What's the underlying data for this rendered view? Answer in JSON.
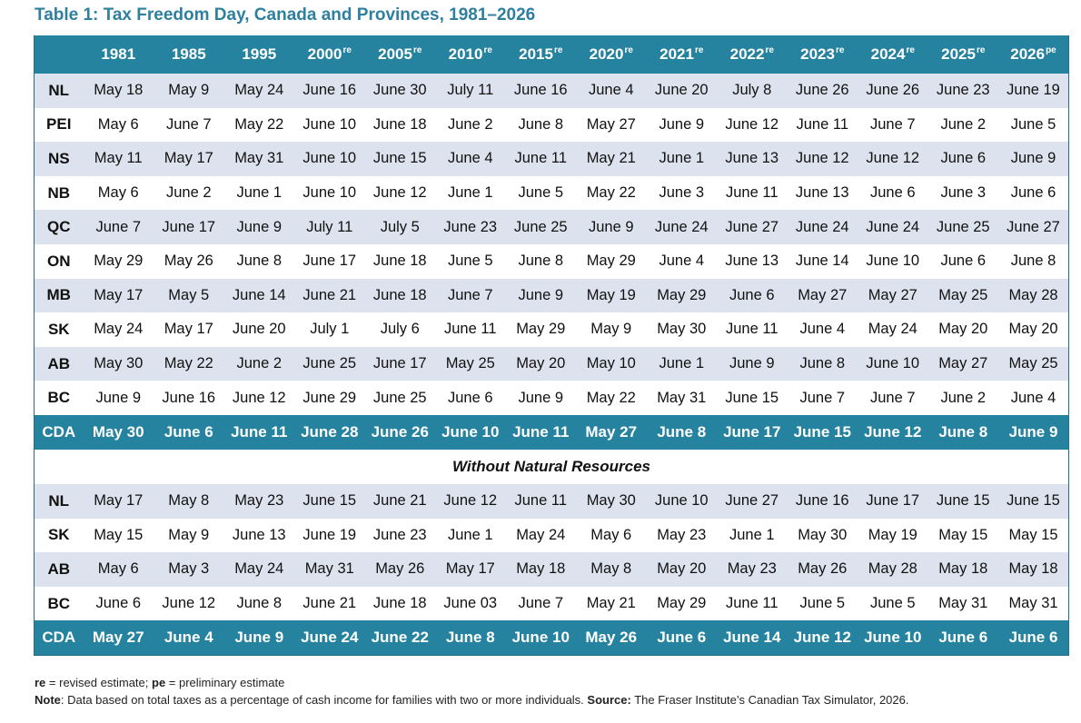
{
  "title": "Table 1: Tax Freedom Day, Canada and Provinces, 1981–2026",
  "columns": [
    {
      "year": "1981",
      "sup": ""
    },
    {
      "year": "1985",
      "sup": ""
    },
    {
      "year": "1995",
      "sup": ""
    },
    {
      "year": "2000",
      "sup": "re"
    },
    {
      "year": "2005",
      "sup": "re"
    },
    {
      "year": "2010",
      "sup": "re"
    },
    {
      "year": "2015",
      "sup": "re"
    },
    {
      "year": "2020",
      "sup": "re"
    },
    {
      "year": "2021",
      "sup": "re"
    },
    {
      "year": "2022",
      "sup": "re"
    },
    {
      "year": "2023",
      "sup": "re"
    },
    {
      "year": "2024",
      "sup": "re"
    },
    {
      "year": "2025",
      "sup": "re"
    },
    {
      "year": "2026",
      "sup": "pe"
    }
  ],
  "rows": [
    {
      "label": "NL",
      "values": [
        "May 18",
        "May 9",
        "May 24",
        "June 16",
        "June 30",
        "July 11",
        "June 16",
        "June 4",
        "June 20",
        "July 8",
        "June 26",
        "June 26",
        "June 23",
        "June 19"
      ]
    },
    {
      "label": "PEI",
      "values": [
        "May 6",
        "June 7",
        "May 22",
        "June 10",
        "June 18",
        "June 2",
        "June 8",
        "May 27",
        "June 9",
        "June 12",
        "June 11",
        "June 7",
        "June 2",
        "June 5"
      ]
    },
    {
      "label": "NS",
      "values": [
        "May 11",
        "May 17",
        "May 31",
        "June 10",
        "June 15",
        "June 4",
        "June 11",
        "May 21",
        "June 1",
        "June 13",
        "June 12",
        "June 12",
        "June 6",
        "June 9"
      ]
    },
    {
      "label": "NB",
      "values": [
        "May 6",
        "June 2",
        "June 1",
        "June 10",
        "June 12",
        "June 1",
        "June 5",
        "May 22",
        "June 3",
        "June 11",
        "June 13",
        "June 6",
        "June 3",
        "June 6"
      ]
    },
    {
      "label": "QC",
      "values": [
        "June 7",
        "June 17",
        "June 9",
        "July 11",
        "July 5",
        "June 23",
        "June 25",
        "June 9",
        "June 24",
        "June 27",
        "June 24",
        "June 24",
        "June 25",
        "June 27"
      ]
    },
    {
      "label": "ON",
      "values": [
        "May 29",
        "May 26",
        "June 8",
        "June 17",
        "June 18",
        "June 5",
        "June 8",
        "May 29",
        "June 4",
        "June 13",
        "June 14",
        "June 10",
        "June 6",
        "June 8"
      ]
    },
    {
      "label": "MB",
      "values": [
        "May 17",
        "May 5",
        "June 14",
        "June 21",
        "June 18",
        "June 7",
        "June 9",
        "May 19",
        "May 29",
        "June 6",
        "May 27",
        "May 27",
        "May 25",
        "May 28"
      ]
    },
    {
      "label": "SK",
      "values": [
        "May 24",
        "May 17",
        "June 20",
        "July 1",
        "July 6",
        "June 11",
        "May 29",
        "May 9",
        "May 30",
        "June 11",
        "June 4",
        "May 24",
        "May 20",
        "May 20"
      ]
    },
    {
      "label": "AB",
      "values": [
        "May 30",
        "May 22",
        "June 2",
        "June 25",
        "June 17",
        "May 25",
        "May 20",
        "May 10",
        "June 1",
        "June 9",
        "June 8",
        "June 10",
        "May 27",
        "May 25"
      ]
    },
    {
      "label": "BC",
      "values": [
        "June 9",
        "June 16",
        "June 12",
        "June 29",
        "June 25",
        "June 6",
        "June 9",
        "May 22",
        "May 31",
        "June 15",
        "June 7",
        "June 7",
        "June 2",
        "June 4"
      ]
    }
  ],
  "total": {
    "label": "CDA",
    "values": [
      "May 30",
      "June 6",
      "June 11",
      "June 28",
      "June 26",
      "June 10",
      "June 11",
      "May 27",
      "June 8",
      "June 17",
      "June 15",
      "June 12",
      "June 8",
      "June 9"
    ]
  },
  "section_title": "Without Natural Resources",
  "nr_rows": [
    {
      "label": "NL",
      "values": [
        "May 17",
        "May 8",
        "May 23",
        "June 15",
        "June 21",
        "June 12",
        "June 11",
        "May 30",
        "June 10",
        "June 27",
        "June 16",
        "June 17",
        "June 15",
        "June 15"
      ]
    },
    {
      "label": "SK",
      "values": [
        "May 15",
        "May 9",
        "June 13",
        "June 19",
        "June 23",
        "June 1",
        "May 24",
        "May 6",
        "May 23",
        "June 1",
        "May 30",
        "May 19",
        "May 15",
        "May 15"
      ]
    },
    {
      "label": "AB",
      "values": [
        "May 6",
        "May 3",
        "May 24",
        "May 31",
        "May 26",
        "May 17",
        "May 18",
        "May 8",
        "May 20",
        "May 23",
        "May 26",
        "May 28",
        "May 18",
        "May 18"
      ]
    },
    {
      "label": "BC",
      "values": [
        "June 6",
        "June 12",
        "June 8",
        "June 21",
        "June 18",
        "June 03",
        "June 7",
        "May 21",
        "May 29",
        "June 11",
        "June 5",
        "June 5",
        "May 31",
        "May 31"
      ]
    }
  ],
  "nr_total": {
    "label": "CDA",
    "values": [
      "May 27",
      "June 4",
      "June 9",
      "June 24",
      "June 22",
      "June 8",
      "June 10",
      "May 26",
      "June 6",
      "June 14",
      "June 12",
      "June 10",
      "June 6",
      "June 6"
    ]
  },
  "footnotes": {
    "re_abbrev": "re",
    "re_text": " = revised estimate; ",
    "pe_abbrev": "pe",
    "pe_text": " = preliminary estimate",
    "note_label": "Note",
    "note_text": ": Data based on total taxes as a percentage of cash income for families with two or more individuals. ",
    "source_label": "Source:",
    "source_text": " The Fraser Institute’s Canadian Tax Simulator, 2026."
  },
  "colors": {
    "header_bg": "#26839f",
    "title_color": "#2f7f9f",
    "shaded_row_bg": "#dde3ee"
  }
}
